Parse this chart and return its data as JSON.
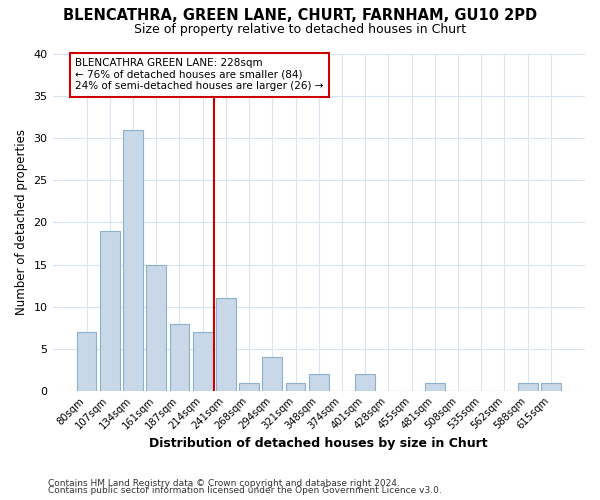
{
  "title": "BLENCATHRA, GREEN LANE, CHURT, FARNHAM, GU10 2PD",
  "subtitle": "Size of property relative to detached houses in Churt",
  "xlabel": "Distribution of detached houses by size in Churt",
  "ylabel": "Number of detached properties",
  "bar_labels": [
    "80sqm",
    "107sqm",
    "134sqm",
    "161sqm",
    "187sqm",
    "214sqm",
    "241sqm",
    "268sqm",
    "294sqm",
    "321sqm",
    "348sqm",
    "374sqm",
    "401sqm",
    "428sqm",
    "455sqm",
    "481sqm",
    "508sqm",
    "535sqm",
    "562sqm",
    "588sqm",
    "615sqm"
  ],
  "bar_values": [
    7,
    19,
    31,
    15,
    8,
    7,
    11,
    1,
    4,
    1,
    2,
    0,
    2,
    0,
    0,
    1,
    0,
    0,
    0,
    1,
    1
  ],
  "bar_color": "#c8d8e8",
  "bar_edge_color": "#8ab0cc",
  "vline_x": 5.5,
  "vline_color": "#cc0000",
  "annotation_line1": "BLENCATHRA GREEN LANE: 228sqm",
  "annotation_line2": "← 76% of detached houses are smaller (84)",
  "annotation_line3": "24% of semi-detached houses are larger (26) →",
  "annotation_box_color": "white",
  "annotation_box_edge_color": "#cc0000",
  "ylim": [
    0,
    40
  ],
  "yticks": [
    0,
    5,
    10,
    15,
    20,
    25,
    30,
    35,
    40
  ],
  "grid_color": "#d8e4f0",
  "footer1": "Contains HM Land Registry data © Crown copyright and database right 2024.",
  "footer2": "Contains public sector information licensed under the Open Government Licence v3.0.",
  "background_color": "#ffffff"
}
